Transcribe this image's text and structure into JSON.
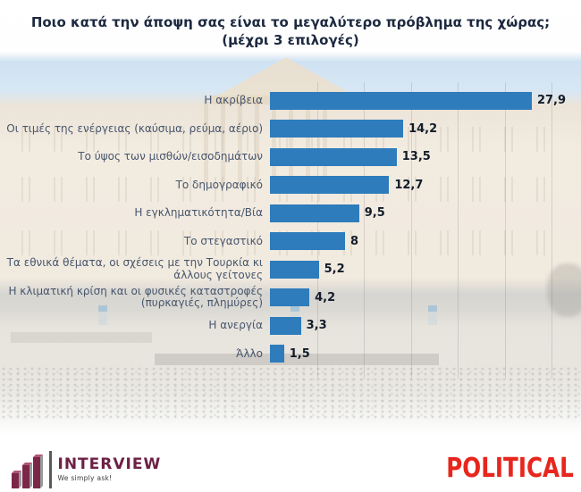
{
  "title": {
    "line1": "Ποιο κατά την άποψη σας είναι το μεγαλύτερο πρόβλημα της χώρας;",
    "line2": "(μέχρι 3 επιλογές)"
  },
  "chart_data": {
    "type": "bar",
    "orientation": "horizontal",
    "categories": [
      "Η ακρίβεια",
      "Οι τιμές της ενέργειας (καύσιμα, ρεύμα, αέριο)",
      "Το ύψος των μισθών/εισοδημάτων",
      "Το δημογραφικό",
      "Η εγκληματικότητα/Βία",
      "Το στεγαστικό",
      "Τα εθνικά θέματα, οι σχέσεις με την Τουρκία κι άλλους γείτονες",
      "Η κλιματική κρίση και οι φυσικές καταστροφές (πυρκαγιές, πλημύρες)",
      "Η ανεργία",
      "Άλλο"
    ],
    "values": [
      27.9,
      14.2,
      13.5,
      12.7,
      9.5,
      8,
      5.2,
      4.2,
      3.3,
      1.5
    ],
    "value_labels": [
      "27,9",
      "14,2",
      "13,5",
      "12,7",
      "9,5",
      "8",
      "5,2",
      "4,2",
      "3,3",
      "1,5"
    ],
    "xlim": [
      0,
      30
    ],
    "gridline_step": 5,
    "grid": true,
    "legend": false,
    "bar_color": "#2e7cbb",
    "value_label_color": "#121c2a",
    "category_label_color": "#47566d"
  },
  "footer": {
    "interview": {
      "name": "INTERVIEW",
      "tagline": "We simply ask!",
      "brand_color": "#6d2045",
      "icon": "ascending-bars-logo-icon"
    },
    "political": {
      "text": "POLITICAL",
      "color": "#e7261d"
    }
  }
}
